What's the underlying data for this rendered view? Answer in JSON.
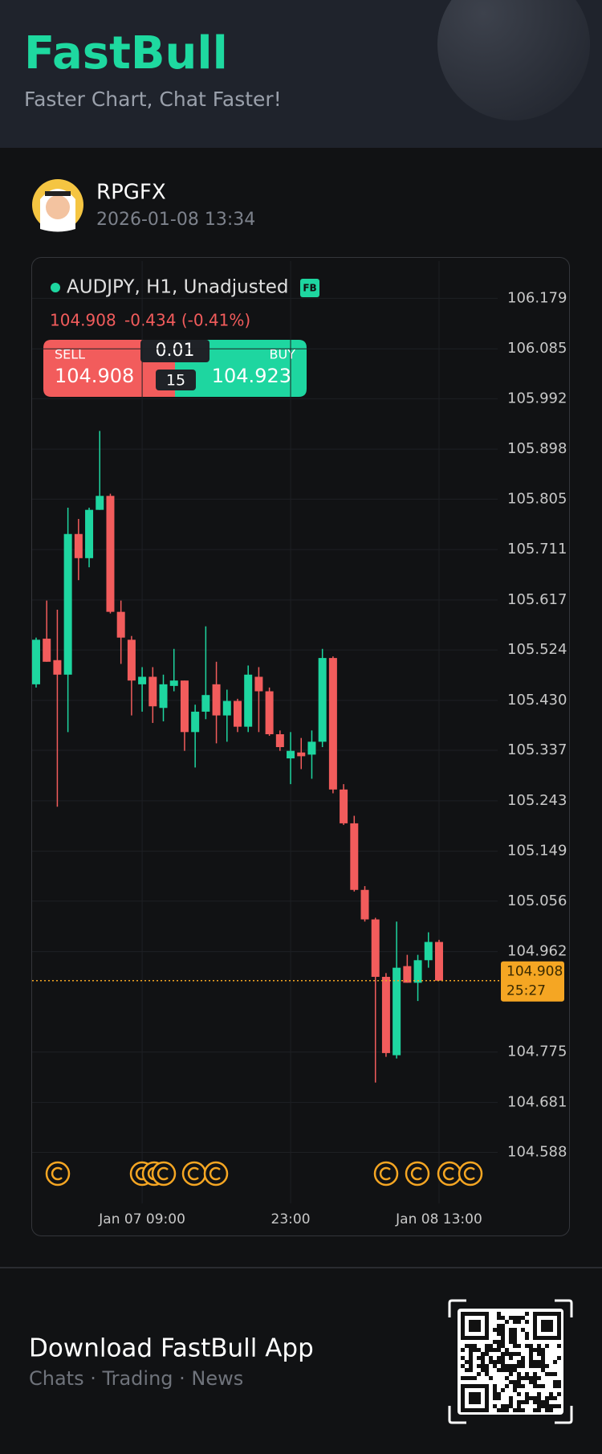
{
  "header": {
    "logo": "FastBull",
    "tagline": "Faster Chart, Chat Faster!"
  },
  "user": {
    "name": "RPGFX",
    "time": "2026-01-08 13:34"
  },
  "chart_data": {
    "type": "candlestick",
    "symbol": "AUDJPY, H1, Unadjusted",
    "badge": "FB",
    "quote": {
      "last": "104.908",
      "change": "-0.434 (-0.41%)"
    },
    "trade": {
      "sell_label": "SELL",
      "sell_price": "104.908",
      "lot": "0.01",
      "spread": "15",
      "buy_label": "BUY",
      "buy_price": "104.923"
    },
    "categories": [
      null,
      null,
      null,
      null,
      null,
      null,
      null,
      null,
      null,
      null,
      "Jan 07 09:00",
      null,
      null,
      null,
      null,
      null,
      null,
      null,
      null,
      null,
      null,
      null,
      null,
      null,
      "23:00",
      null,
      null,
      null,
      null,
      null,
      null,
      null,
      null,
      null,
      null,
      null,
      null,
      null,
      "Jan 08 13:00"
    ],
    "open": [
      105.46,
      105.545,
      105.505,
      105.478,
      105.74,
      105.695,
      105.785,
      105.811,
      105.595,
      105.543,
      105.46,
      105.474,
      105.416,
      105.457,
      105.467,
      105.371,
      105.409,
      105.46,
      105.402,
      105.429,
      105.381,
      105.474,
      105.447,
      105.367,
      105.322,
      105.333,
      105.329,
      105.353,
      105.509,
      105.264,
      105.201,
      105.077,
      105.022,
      104.915,
      104.769,
      104.935,
      104.904,
      104.946,
      104.98
    ],
    "high": [
      105.547,
      105.616,
      105.599,
      105.789,
      105.768,
      105.789,
      105.932,
      105.815,
      105.616,
      105.55,
      105.492,
      105.492,
      105.478,
      105.526,
      105.467,
      105.422,
      105.568,
      105.502,
      105.45,
      105.433,
      105.495,
      105.492,
      105.454,
      105.374,
      105.371,
      105.36,
      105.374,
      105.526,
      105.512,
      105.274,
      105.215,
      105.084,
      105.025,
      104.922,
      105.018,
      104.956,
      104.956,
      104.998,
      104.984
    ],
    "low": [
      105.454,
      105.502,
      105.232,
      105.371,
      105.654,
      105.678,
      105.785,
      105.592,
      105.498,
      105.402,
      105.409,
      105.388,
      105.391,
      105.447,
      105.336,
      105.305,
      105.395,
      105.35,
      105.353,
      105.371,
      105.371,
      105.371,
      105.364,
      105.336,
      105.274,
      105.302,
      105.284,
      105.343,
      105.257,
      105.198,
      105.074,
      105.018,
      104.718,
      104.766,
      104.763,
      104.904,
      104.87,
      104.932,
      104.908
    ],
    "close": [
      105.543,
      105.502,
      105.478,
      105.74,
      105.695,
      105.785,
      105.811,
      105.595,
      105.547,
      105.467,
      105.474,
      105.419,
      105.46,
      105.467,
      105.371,
      105.409,
      105.44,
      105.402,
      105.429,
      105.381,
      105.478,
      105.447,
      105.367,
      105.343,
      105.336,
      105.326,
      105.353,
      105.509,
      105.264,
      105.201,
      105.077,
      105.022,
      104.915,
      104.773,
      104.932,
      104.904,
      104.946,
      104.98,
      104.908
    ],
    "up_color": "#1ed6a0",
    "down_color": "#f25c5c",
    "ylim": [
      104.493,
      106.226
    ],
    "yticks": [
      106.179,
      106.085,
      105.992,
      105.898,
      105.805,
      105.711,
      105.617,
      105.524,
      {
        "value": 105.43,
        "label": "105.430"
      },
      105.337,
      105.243,
      105.149,
      105.056,
      104.962,
      104.775,
      104.681,
      104.588
    ],
    "grid": true,
    "current_price": 104.908,
    "countdown": "25:27",
    "price_line_color": "#f5a623"
  },
  "footer": {
    "title": "Download FastBull App",
    "subtitle": "Chats · Trading · News"
  }
}
